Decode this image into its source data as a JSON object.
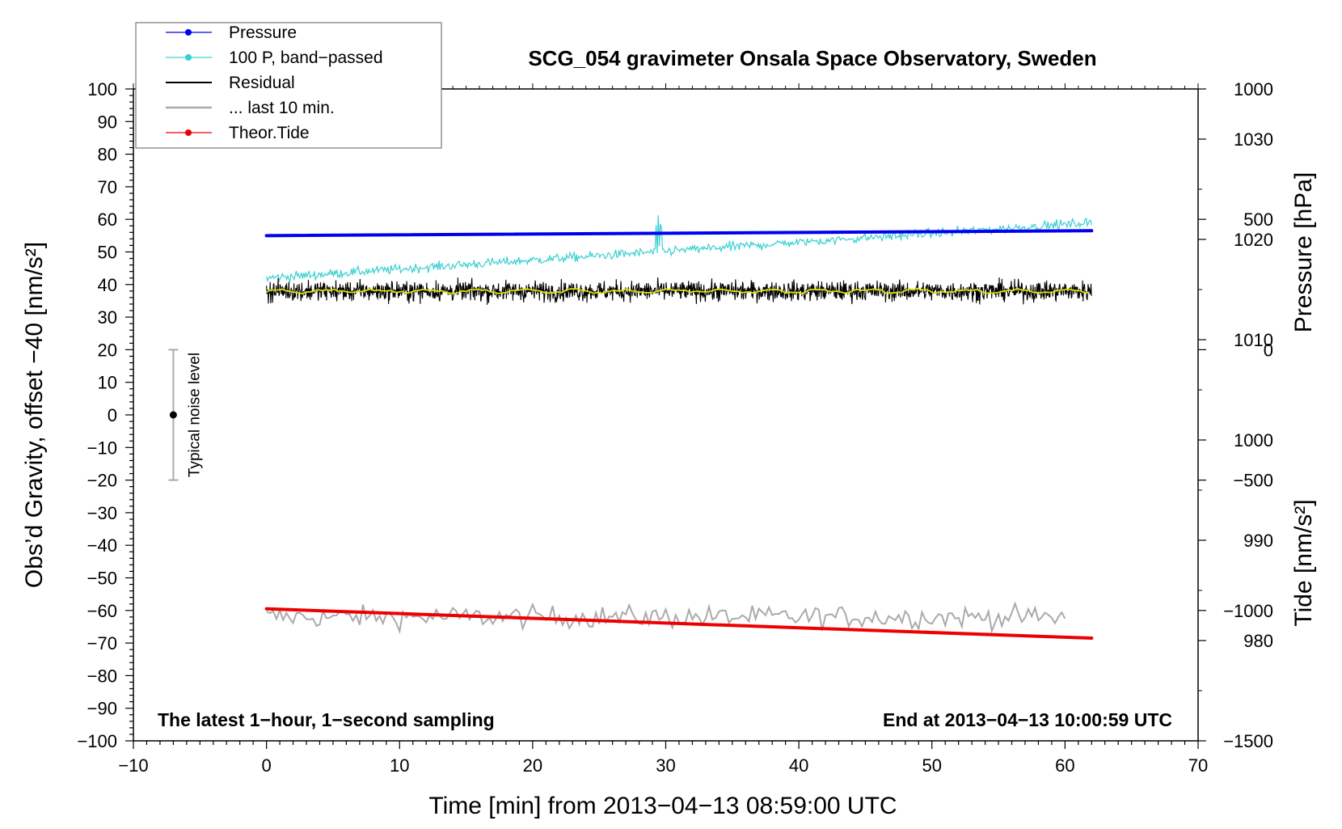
{
  "chart_data": {
    "type": "line",
    "title": "SCG_054 gravimeter Onsala Space Observatory, Sweden",
    "xlabel": "Time [min] from 2013−04−13 08:59:00 UTC",
    "ylabel": "Obs’d Gravity, offset −40 [nm/s²]",
    "xlim": [
      -10,
      70
    ],
    "ylim": [
      -100,
      100
    ],
    "x_ticks": [
      -10,
      0,
      10,
      20,
      30,
      40,
      50,
      60,
      70
    ],
    "x_tick_labels": [
      "−10",
      "0",
      "10",
      "20",
      "30",
      "40",
      "50",
      "60",
      "70"
    ],
    "y_ticks": [
      100,
      90,
      80,
      70,
      60,
      50,
      40,
      30,
      20,
      10,
      0,
      -10,
      -20,
      -30,
      -40,
      -50,
      -60,
      -70,
      -80,
      -90,
      -100
    ],
    "y_tick_labels": [
      "100",
      "90",
      "80",
      "70",
      "60",
      "50",
      "40",
      "30",
      "20",
      "10",
      "0",
      "−10",
      "−20",
      "−30",
      "−40",
      "−50",
      "−60",
      "−70",
      "−80",
      "−90",
      "−100"
    ],
    "right_axes": [
      {
        "label": "Pressure [hPa]",
        "range": [
          970,
          1035
        ],
        "ticks": [
          1030,
          1020,
          1010,
          1000,
          990,
          980
        ],
        "tick_labels": [
          "1030",
          "1020",
          "1010",
          "1000",
          "990",
          "980"
        ]
      },
      {
        "label": "Tide [nm/s²]",
        "range": [
          -1500,
          1000
        ],
        "ticks": [
          1000,
          500,
          0,
          -500,
          -1000,
          -1500
        ],
        "tick_labels": [
          "1000",
          "500",
          "0",
          "−500",
          "−1000",
          "−1500"
        ]
      }
    ],
    "series": [
      {
        "name": "Pressure",
        "color": "#0000ee",
        "x_range": [
          0,
          62
        ],
        "y_start": 55,
        "y_end": 56.5,
        "note": "plotted on pressure axis"
      },
      {
        "name": "100 P, band−passed",
        "color": "#3ad0d0",
        "x_range": [
          0,
          62
        ],
        "y_start": 42,
        "y_end": 59
      },
      {
        "name": "Residual",
        "color": "#000000",
        "x_range": [
          0,
          62
        ],
        "y_mean": 38,
        "y_spread": 4
      },
      {
        "name": "... last 10 min.",
        "color": "#aaaaaa",
        "x_range": [
          0,
          60
        ],
        "y_mean": -62,
        "y_spread": 3
      },
      {
        "name": "Theor.Tide",
        "color": "#ee0000",
        "x_range": [
          0,
          62
        ],
        "y_start": -59.5,
        "y_end": -68.5,
        "note": "plotted on tide axis"
      }
    ],
    "smoothed_residual": {
      "color": "#e0e000",
      "y_mean": 38
    },
    "noise_bar": {
      "x": -7,
      "y": 0,
      "low": -20,
      "high": 20,
      "label": "Typical noise level"
    },
    "legend_placement": "top-left",
    "annotations": {
      "bottom_left": "The latest 1−hour, 1−second sampling",
      "bottom_right": "End at 2013−04−13 10:00:59 UTC"
    }
  }
}
